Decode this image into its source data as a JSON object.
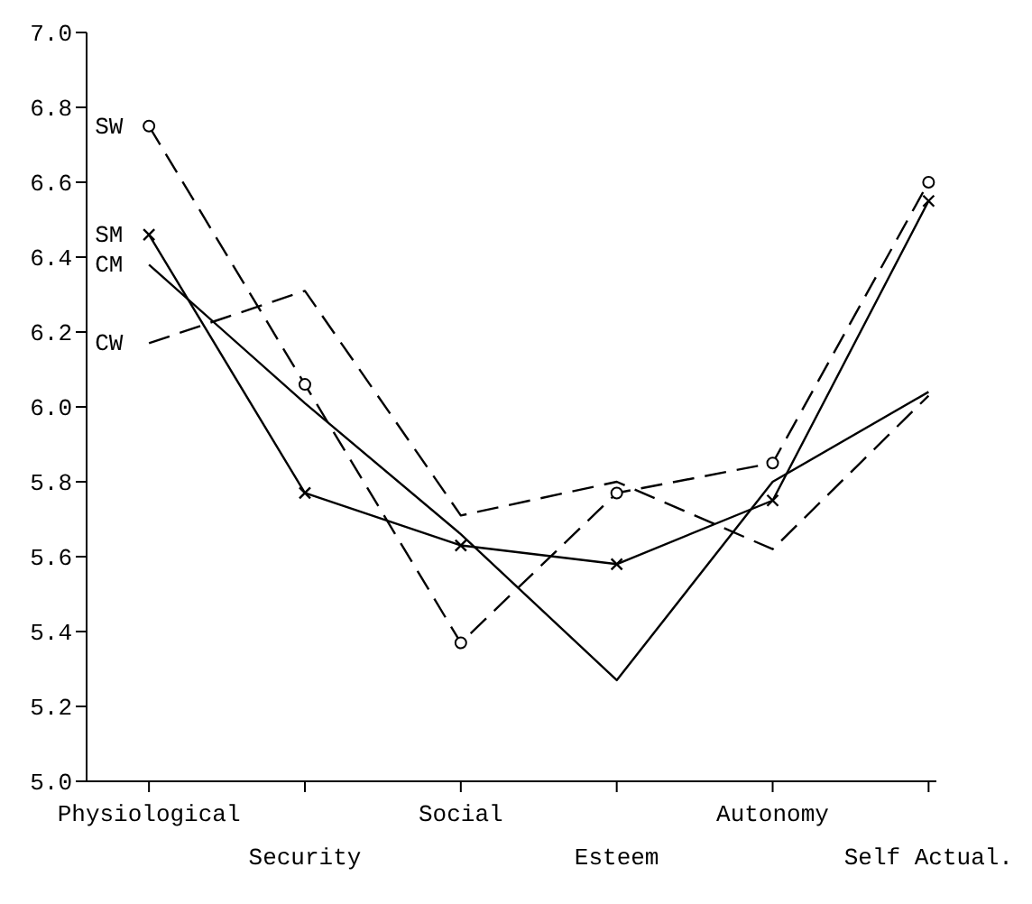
{
  "chart_data": {
    "type": "line",
    "categories": [
      "Physiological",
      "Security",
      "Social",
      "Esteem",
      "Autonomy",
      "Self Actual."
    ],
    "series": [
      {
        "name": "SW",
        "color": "#000000",
        "line_style": "dashed",
        "marker": "circle",
        "values": [
          6.75,
          6.06,
          5.37,
          5.77,
          5.85,
          6.6
        ]
      },
      {
        "name": "SM",
        "color": "#000000",
        "line_style": "solid",
        "marker": "cross",
        "values": [
          6.46,
          5.77,
          5.63,
          5.58,
          5.75,
          6.55
        ]
      },
      {
        "name": "CM",
        "color": "#000000",
        "line_style": "solid",
        "marker": "none",
        "values": [
          6.38,
          6.01,
          5.66,
          5.27,
          5.8,
          6.04
        ]
      },
      {
        "name": "CW",
        "color": "#000000",
        "line_style": "dashed",
        "marker": "none",
        "values": [
          6.17,
          6.31,
          5.71,
          5.8,
          5.62,
          6.03
        ]
      }
    ],
    "ylim": [
      5,
      7
    ],
    "yticks": [
      {
        "value": 5,
        "label": "5.0"
      },
      {
        "value": 5.2,
        "label": "5.2"
      },
      {
        "value": 5.4,
        "label": "5.4"
      },
      {
        "value": 5.6,
        "label": "5.6"
      },
      {
        "value": 5.8,
        "label": "5.8"
      },
      {
        "value": 6,
        "label": "6.0"
      },
      {
        "value": 6.2,
        "label": "6.2"
      },
      {
        "value": 6.4,
        "label": "6.4"
      },
      {
        "value": 6.6,
        "label": "6.6"
      },
      {
        "value": 6.8,
        "label": "6.8"
      },
      {
        "value": 7,
        "label": "7.0"
      }
    ],
    "grid": false,
    "legend": false
  }
}
